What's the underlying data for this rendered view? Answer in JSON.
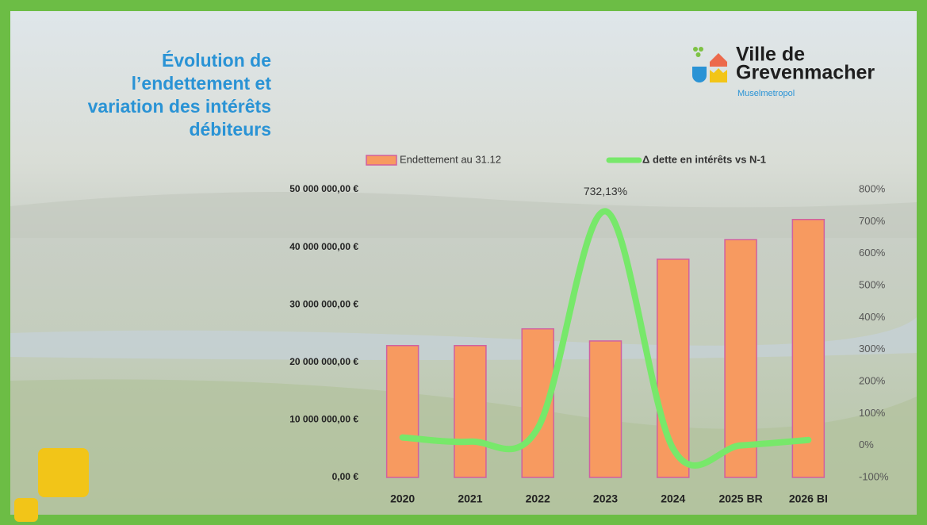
{
  "chart_data": {
    "type": "bar",
    "title": "Évolution de l’endettement et variation des intérêts débiteurs",
    "logo": {
      "name_top": "Ville de",
      "name_bottom": "Grevenmacher",
      "tagline": "Muselmetropol"
    },
    "categories": [
      "2020",
      "2021",
      "2022",
      "2023",
      "2024",
      "2025 BR",
      "2026 BI"
    ],
    "series": [
      {
        "name": "Endettement au 31.12",
        "type": "bar",
        "color": "#f79a60",
        "values": [
          22900000,
          22900000,
          25800000,
          23700000,
          37900000,
          41300000,
          44800000
        ]
      },
      {
        "name": "Δ dette en intérêts vs N-1",
        "type": "line",
        "axis": "y2",
        "color": "#77e86a",
        "values": [
          25,
          12,
          54,
          732.13,
          -10,
          0,
          17
        ],
        "value_labels": [
          null,
          null,
          null,
          "732,13%",
          null,
          null,
          null
        ]
      }
    ],
    "ylim": [
      0,
      50000000
    ],
    "yticks": [
      {
        "value": 0,
        "label": "0,00 €"
      },
      {
        "value": 10000000,
        "label": "10 000 000,00 €"
      },
      {
        "value": 20000000,
        "label": "20 000 000,00 €"
      },
      {
        "value": 30000000,
        "label": "30 000 000,00 €"
      },
      {
        "value": 40000000,
        "label": "40 000 000,00 €"
      },
      {
        "value": 50000000,
        "label": "50 000 000,00 €"
      }
    ],
    "y2lim": [
      -100,
      800
    ],
    "y2ticks": [
      {
        "value": -100,
        "label": "-100%"
      },
      {
        "value": 0,
        "label": "0%"
      },
      {
        "value": 100,
        "label": "100%"
      },
      {
        "value": 200,
        "label": "200%"
      },
      {
        "value": 300,
        "label": "300%"
      },
      {
        "value": 400,
        "label": "400%"
      },
      {
        "value": 500,
        "label": "500%"
      },
      {
        "value": 600,
        "label": "600%"
      },
      {
        "value": 700,
        "label": "700%"
      },
      {
        "value": 800,
        "label": "800%"
      }
    ],
    "legend": "top"
  }
}
